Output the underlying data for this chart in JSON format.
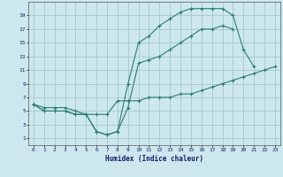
{
  "background_color": "#cce8ee",
  "grid_color": "#aacccc",
  "line_color": "#2e7d6e",
  "xlabel": "Humidex (Indice chaleur)",
  "xlim": [
    -0.5,
    23.5
  ],
  "ylim": [
    0,
    21
  ],
  "xticks": [
    0,
    1,
    2,
    3,
    4,
    5,
    6,
    7,
    8,
    9,
    10,
    11,
    12,
    13,
    14,
    15,
    16,
    17,
    18,
    19,
    20,
    21,
    22,
    23
  ],
  "yticks": [
    1,
    3,
    5,
    7,
    9,
    11,
    13,
    15,
    17,
    19
  ],
  "line1_x": [
    0,
    1,
    2,
    3,
    4,
    5,
    6,
    7,
    8,
    9,
    10,
    11,
    12,
    13,
    14,
    15,
    16,
    17,
    18,
    19,
    20,
    21
  ],
  "line1_y": [
    6,
    5,
    5,
    5,
    4.5,
    4.5,
    2,
    1.5,
    2,
    9,
    15,
    16,
    17.5,
    18.5,
    19.5,
    20,
    20,
    20,
    20,
    19,
    14,
    11.5
  ],
  "line2_x": [
    0,
    1,
    2,
    3,
    4,
    5,
    6,
    7,
    8,
    9,
    10,
    11,
    12,
    13,
    14,
    15,
    16,
    17,
    18,
    19
  ],
  "line2_y": [
    6,
    5,
    5,
    5,
    4.5,
    4.5,
    2,
    1.5,
    2,
    5.5,
    12,
    12.5,
    13,
    14,
    15,
    16,
    17,
    17,
    17.5,
    17
  ],
  "line3_x": [
    0,
    1,
    2,
    3,
    4,
    5,
    6,
    7,
    8,
    9,
    10,
    11,
    12,
    13,
    14,
    15,
    16,
    17,
    18,
    19,
    20,
    21,
    22,
    23
  ],
  "line3_y": [
    6,
    5.5,
    5.5,
    5.5,
    5,
    4.5,
    4.5,
    4.5,
    6.5,
    6.5,
    6.5,
    7,
    7,
    7,
    7.5,
    7.5,
    8,
    8.5,
    9,
    9.5,
    10,
    10.5,
    11,
    11.5
  ]
}
